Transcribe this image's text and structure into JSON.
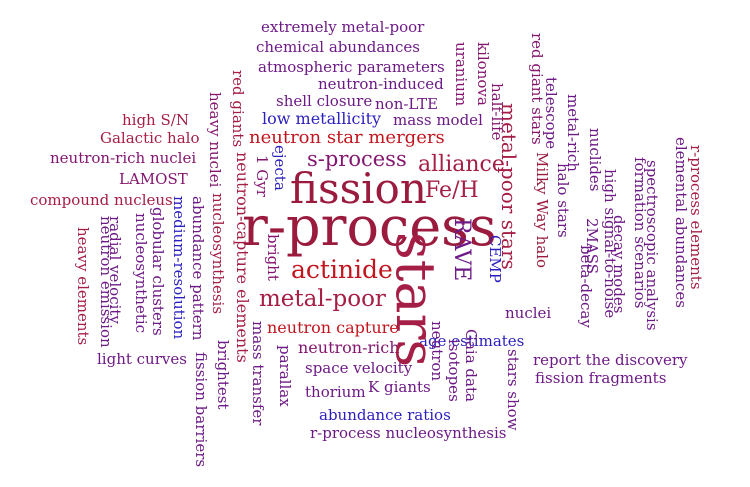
{
  "word_cloud": {
    "palette": {
      "purple": "#6e1a86",
      "plum": "#851670",
      "crimson": "#a51e45",
      "red": "#c2161f",
      "maroon": "#9a1b3d",
      "blue": "#2a1fbf"
    },
    "words": [
      {
        "text": "extremely metal-poor",
        "color": "purple"
      },
      {
        "text": "chemical abundances",
        "color": "purple"
      },
      {
        "text": "atmospheric parameters",
        "color": "purple"
      },
      {
        "text": "neutron-induced",
        "color": "purple"
      },
      {
        "text": "shell closure",
        "color": "purple"
      },
      {
        "text": "non-LTE",
        "color": "purple"
      },
      {
        "text": "low metallicity",
        "color": "blue"
      },
      {
        "text": "mass model",
        "color": "purple"
      },
      {
        "text": "neutron star mergers",
        "color": "red"
      },
      {
        "text": "s-process",
        "color": "plum"
      },
      {
        "text": "alliance",
        "color": "crimson"
      },
      {
        "text": "fission",
        "color": "maroon"
      },
      {
        "text": "Fe/H",
        "color": "crimson"
      },
      {
        "text": "r-process",
        "color": "maroon"
      },
      {
        "text": "actinide",
        "color": "red"
      },
      {
        "text": "metal-poor",
        "color": "crimson"
      },
      {
        "text": "neutron capture",
        "color": "red"
      },
      {
        "text": "neutron-rich",
        "color": "plum"
      },
      {
        "text": "space velocity",
        "color": "purple"
      },
      {
        "text": "thorium",
        "color": "purple"
      },
      {
        "text": "K giants",
        "color": "purple"
      },
      {
        "text": "abundance ratios",
        "color": "blue"
      },
      {
        "text": "r-process nucleosynthesis",
        "color": "purple"
      },
      {
        "text": "age estimates",
        "color": "blue"
      },
      {
        "text": "nuclei",
        "color": "purple"
      },
      {
        "text": "report the discovery",
        "color": "purple"
      },
      {
        "text": "fission fragments",
        "color": "purple"
      },
      {
        "text": "light curves",
        "color": "purple"
      },
      {
        "text": "high S/N",
        "color": "crimson"
      },
      {
        "text": "Galactic halo",
        "color": "crimson"
      },
      {
        "text": "neutron-rich nuclei",
        "color": "plum"
      },
      {
        "text": "LAMOST",
        "color": "plum"
      },
      {
        "text": "compound nucleus",
        "color": "crimson"
      },
      {
        "text": "stars",
        "color": "crimson"
      },
      {
        "text": "RAVE",
        "color": "purple"
      },
      {
        "text": "metal-poor stars",
        "color": "crimson"
      },
      {
        "text": "CEMP",
        "color": "blue"
      },
      {
        "text": "Milky Way halo",
        "color": "maroon"
      },
      {
        "text": "halo stars",
        "color": "purple"
      },
      {
        "text": "beta-decay",
        "color": "purple"
      },
      {
        "text": "2MASS",
        "color": "purple"
      },
      {
        "text": "decay modes",
        "color": "purple"
      },
      {
        "text": "nuclides",
        "color": "purple"
      },
      {
        "text": "metal-rich",
        "color": "purple"
      },
      {
        "text": "telescope",
        "color": "purple"
      },
      {
        "text": "red giant stars",
        "color": "plum"
      },
      {
        "text": "half-life",
        "color": "plum"
      },
      {
        "text": "kilonova",
        "color": "plum"
      },
      {
        "text": "uranium",
        "color": "plum"
      },
      {
        "text": "high signal-to-noise",
        "color": "purple"
      },
      {
        "text": "formation scenarios",
        "color": "purple"
      },
      {
        "text": "spectroscopic analysis",
        "color": "purple"
      },
      {
        "text": "elemental abundances",
        "color": "purple"
      },
      {
        "text": "r-process elements",
        "color": "crimson"
      },
      {
        "text": "red giants",
        "color": "crimson"
      },
      {
        "text": "heavy nuclei",
        "color": "plum"
      },
      {
        "text": "neutron-capture elements",
        "color": "crimson"
      },
      {
        "text": "nucleosynthesis",
        "color": "crimson"
      },
      {
        "text": "1 Gyr",
        "color": "plum"
      },
      {
        "text": "ejecta",
        "color": "blue"
      },
      {
        "text": "bright",
        "color": "plum"
      },
      {
        "text": "abundance pattern",
        "color": "purple"
      },
      {
        "text": "medium-resolution",
        "color": "blue"
      },
      {
        "text": "globular clusters",
        "color": "purple"
      },
      {
        "text": "nucleosynthetic",
        "color": "purple"
      },
      {
        "text": "radial velocity",
        "color": "purple"
      },
      {
        "text": "neutron emission",
        "color": "purple"
      },
      {
        "text": "heavy elements",
        "color": "crimson"
      },
      {
        "text": "brightest",
        "color": "purple"
      },
      {
        "text": "fission barriers",
        "color": "purple"
      },
      {
        "text": "mass transfer",
        "color": "purple"
      },
      {
        "text": "parallax",
        "color": "purple"
      },
      {
        "text": "neutron",
        "color": "purple"
      },
      {
        "text": "isotopes",
        "color": "purple"
      },
      {
        "text": "Gaia data",
        "color": "purple"
      },
      {
        "text": "stars show",
        "color": "purple"
      }
    ]
  }
}
